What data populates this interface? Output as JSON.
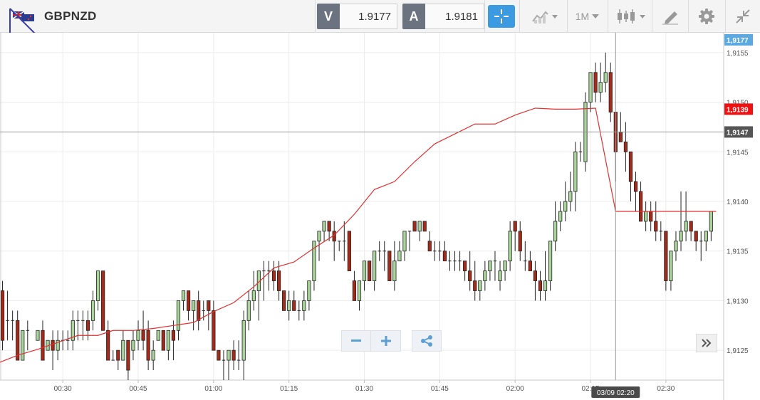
{
  "header": {
    "symbol": "GBPNZD",
    "bid_label": "V",
    "bid_value": "1.9177",
    "ask_label": "A",
    "ask_value": "1.9181",
    "interval_label": "1M"
  },
  "icons": {
    "flag": "gb-nz-flag-icon",
    "crosshair": "crosshair-icon",
    "chart_type": "line-chart-icon",
    "candles": "candlestick-icon",
    "draw": "pencil-icon",
    "settings": "gear-icon",
    "collapse": "collapse-icon",
    "zoom_out": "minus-icon",
    "zoom_in": "plus-icon",
    "share": "share-icon",
    "scroll_end": "double-chevron-right-icon"
  },
  "colors": {
    "up": "#a9d59a",
    "down": "#a52a1a",
    "ma": "#e03030",
    "bid_tag": "#5aa9e0",
    "cross_tag": "#555555",
    "ma_tag": "#ee1111",
    "accent": "#3c9be0"
  },
  "chart_data": {
    "type": "candlestick",
    "y_range": [
      1.9122,
      1.9157
    ],
    "y_ticks": [
      "1,9125",
      "1,9130",
      "1,9135",
      "1,9140",
      "1,9145",
      "1,9150",
      "1,9155"
    ],
    "x_ticks": [
      "00:30",
      "00:45",
      "01:00",
      "01:15",
      "01:30",
      "01:45",
      "02:00",
      "02:15",
      "02:30"
    ],
    "x_tick_minutes": [
      30,
      45,
      60,
      75,
      90,
      105,
      120,
      135,
      150
    ],
    "x_range_minutes": [
      17.5,
      161.5
    ],
    "price_tags": {
      "bid": "1,9177",
      "crosshair": "1,9147",
      "ma": "1,9139"
    },
    "crosshair_price": 1.9147,
    "crosshair_time": "03/09 02:20",
    "crosshair_minute": 140,
    "ma_values": [
      1.91238,
      1.91248,
      1.91262,
      1.91262,
      1.9127,
      1.9127,
      1.91272,
      1.9128,
      1.91289,
      1.91301,
      1.91314,
      1.91333,
      1.91339,
      1.91353,
      1.91366,
      1.91387,
      1.91412,
      1.9142,
      1.9144,
      1.91458,
      1.91468,
      1.91478,
      1.91478,
      1.91487,
      1.91494,
      1.91493,
      1.91493
    ],
    "ma_minutes": [
      17.5,
      21,
      25,
      29,
      33,
      37,
      40,
      44,
      48,
      52,
      56,
      60,
      64,
      68,
      72,
      76,
      80,
      84,
      88,
      92,
      96,
      100,
      104,
      108,
      112,
      116,
      120,
      124,
      128,
      132,
      136,
      140,
      144,
      148,
      152,
      156,
      160
    ],
    "ma_series": [
      1.91238,
      1.91245,
      1.91251,
      1.91258,
      1.91265,
      1.91265,
      1.9127,
      1.9127,
      1.91272,
      1.91275,
      1.91278,
      1.91289,
      1.91298,
      1.91314,
      1.91333,
      1.91339,
      1.91353,
      1.91366,
      1.91387,
      1.91412,
      1.9142,
      1.9144,
      1.91458,
      1.91468,
      1.91478,
      1.91478,
      1.91487,
      1.91494,
      1.91493,
      1.91493,
      1.91494,
      1.9139,
      1.9139,
      1.9139,
      1.9139,
      1.9139,
      1.9139
    ],
    "candles": [
      [
        18,
        1.9131,
        1.9132,
        1.9125,
        1.9126
      ],
      [
        19,
        1.9128,
        1.9131,
        1.9126,
        1.9128
      ],
      [
        20,
        1.9128,
        1.9129,
        1.9126,
        1.9128
      ],
      [
        21,
        1.9128,
        1.9129,
        1.9124,
        1.9124
      ],
      [
        22,
        1.9124,
        1.9127,
        1.9124,
        1.9127
      ],
      [
        23,
        1.9127,
        1.9128,
        1.9125,
        1.9127
      ],
      [
        25,
        1.9126,
        1.9127,
        1.9126,
        1.9127
      ],
      [
        26,
        1.9127,
        1.9128,
        1.9124,
        1.9124
      ],
      [
        27,
        1.9125,
        1.9126,
        1.9125,
        1.9126
      ],
      [
        28,
        1.9126,
        1.9127,
        1.9123,
        1.9125
      ],
      [
        29,
        1.9125,
        1.9127,
        1.9124,
        1.9126
      ],
      [
        30,
        1.9126,
        1.9127,
        1.9125,
        1.9126
      ],
      [
        31,
        1.9126,
        1.9127,
        1.9125,
        1.9126
      ],
      [
        32,
        1.9126,
        1.9129,
        1.9125,
        1.9128
      ],
      [
        33,
        1.9128,
        1.9129,
        1.9126,
        1.9128
      ],
      [
        34,
        1.9128,
        1.9129,
        1.9126,
        1.9128
      ],
      [
        35,
        1.9128,
        1.9129,
        1.9126,
        1.9127
      ],
      [
        36,
        1.9128,
        1.9131,
        1.9127,
        1.913
      ],
      [
        37,
        1.913,
        1.9133,
        1.9129,
        1.9133
      ],
      [
        38,
        1.9133,
        1.9133,
        1.9127,
        1.9127
      ],
      [
        39,
        1.9127,
        1.9128,
        1.9124,
        1.9124
      ],
      [
        40,
        1.9124,
        1.9125,
        1.9124,
        1.9124
      ],
      [
        41,
        1.9125,
        1.9125,
        1.9123,
        1.9124
      ],
      [
        42,
        1.9124,
        1.9127,
        1.9124,
        1.9126
      ],
      [
        43,
        1.9126,
        1.9126,
        1.9122,
        1.9123
      ],
      [
        44,
        1.9125,
        1.9127,
        1.9124,
        1.9126
      ],
      [
        45,
        1.9126,
        1.9128,
        1.9125,
        1.9127
      ],
      [
        46,
        1.9127,
        1.9129,
        1.9125,
        1.9126
      ],
      [
        47,
        1.9127,
        1.9128,
        1.9123,
        1.9124
      ],
      [
        48,
        1.9124,
        1.9126,
        1.9123,
        1.9125
      ],
      [
        49,
        1.9126,
        1.9127,
        1.9126,
        1.9127
      ],
      [
        50,
        1.9127,
        1.9127,
        1.9125,
        1.9125
      ],
      [
        51,
        1.9125,
        1.9127,
        1.9124,
        1.9127
      ],
      [
        52,
        1.9127,
        1.9128,
        1.9124,
        1.9126
      ],
      [
        53,
        1.9127,
        1.913,
        1.9126,
        1.913
      ],
      [
        54,
        1.913,
        1.9131,
        1.9129,
        1.9131
      ],
      [
        55,
        1.9131,
        1.9131,
        1.9128,
        1.9129
      ],
      [
        56,
        1.9129,
        1.913,
        1.9127,
        1.913
      ],
      [
        57,
        1.913,
        1.9131,
        1.9127,
        1.9128
      ],
      [
        58,
        1.9129,
        1.913,
        1.9128,
        1.9129
      ],
      [
        59,
        1.913,
        1.913,
        1.9127,
        1.9129
      ],
      [
        60,
        1.9129,
        1.913,
        1.9125,
        1.9125
      ],
      [
        61,
        1.9125,
        1.9125,
        1.9124,
        1.9124
      ],
      [
        62,
        1.9124,
        1.9125,
        1.9122,
        1.9124
      ],
      [
        63,
        1.9124,
        1.9125,
        1.9122,
        1.9125
      ],
      [
        64,
        1.9125,
        1.9126,
        1.9123,
        1.9124
      ],
      [
        65,
        1.9124,
        1.9126,
        1.9123,
        1.9124
      ],
      [
        66,
        1.9124,
        1.9129,
        1.9122,
        1.9128
      ],
      [
        67,
        1.9128,
        1.9131,
        1.9127,
        1.913
      ],
      [
        68,
        1.913,
        1.9133,
        1.9129,
        1.9131
      ],
      [
        69,
        1.9131,
        1.9133,
        1.9128,
        1.9133
      ],
      [
        70,
        1.9133,
        1.9134,
        1.913,
        1.9133
      ],
      [
        71,
        1.9133,
        1.9134,
        1.9131,
        1.9133
      ],
      [
        72,
        1.9133,
        1.9134,
        1.9131,
        1.9132
      ],
      [
        73,
        1.9133,
        1.9134,
        1.913,
        1.9131
      ],
      [
        74,
        1.9131,
        1.9131,
        1.9129,
        1.9129
      ],
      [
        75,
        1.9129,
        1.9131,
        1.9128,
        1.913
      ],
      [
        76,
        1.913,
        1.9131,
        1.9129,
        1.9129
      ],
      [
        77,
        1.9129,
        1.913,
        1.9128,
        1.9129
      ],
      [
        78,
        1.9129,
        1.9131,
        1.9128,
        1.913
      ],
      [
        79,
        1.913,
        1.9132,
        1.9129,
        1.9132
      ],
      [
        80,
        1.9132,
        1.9136,
        1.9131,
        1.9136
      ],
      [
        81,
        1.9136,
        1.9137,
        1.9134,
        1.9137
      ],
      [
        82,
        1.9137,
        1.9138,
        1.9136,
        1.9138
      ],
      [
        83,
        1.9138,
        1.9138,
        1.9136,
        1.9137
      ],
      [
        84,
        1.9137,
        1.9138,
        1.9134,
        1.9136
      ],
      [
        85,
        1.9136,
        1.9136,
        1.9135,
        1.9136
      ],
      [
        86,
        1.9136,
        1.9138,
        1.9134,
        1.9136
      ],
      [
        87,
        1.9137,
        1.9137,
        1.9133,
        1.9133
      ],
      [
        88,
        1.9132,
        1.9133,
        1.913,
        1.913
      ],
      [
        89,
        1.913,
        1.9132,
        1.9129,
        1.9132
      ],
      [
        90,
        1.9132,
        1.9134,
        1.9131,
        1.9134
      ],
      [
        91,
        1.9134,
        1.9134,
        1.9132,
        1.9132
      ],
      [
        92,
        1.9132,
        1.9135,
        1.9131,
        1.9135
      ],
      [
        93,
        1.9135,
        1.9136,
        1.9134,
        1.9135
      ],
      [
        94,
        1.9135,
        1.9136,
        1.9133,
        1.9135
      ],
      [
        95,
        1.9135,
        1.9135,
        1.9132,
        1.9132
      ],
      [
        96,
        1.9132,
        1.9136,
        1.9131,
        1.9134
      ],
      [
        97,
        1.9134,
        1.9136,
        1.9134,
        1.9135
      ],
      [
        98,
        1.9135,
        1.9137,
        1.9134,
        1.9137
      ],
      [
        99,
        1.9137,
        1.9137,
        1.9135,
        1.9137
      ],
      [
        100,
        1.9138,
        1.9138,
        1.9137,
        1.9137
      ],
      [
        101,
        1.9137,
        1.9138,
        1.9136,
        1.9138
      ],
      [
        102,
        1.9138,
        1.9138,
        1.9137,
        1.9137
      ],
      [
        103,
        1.9136,
        1.9137,
        1.9135,
        1.9135
      ],
      [
        104,
        1.9135,
        1.9136,
        1.9134,
        1.9135
      ],
      [
        105,
        1.9135,
        1.9136,
        1.9134,
        1.9135
      ],
      [
        106,
        1.9135,
        1.9136,
        1.9134,
        1.9134
      ],
      [
        107,
        1.9134,
        1.9135,
        1.9133,
        1.9134
      ],
      [
        108,
        1.9134,
        1.9135,
        1.9133,
        1.9134
      ],
      [
        109,
        1.9134,
        1.9135,
        1.9133,
        1.9134
      ],
      [
        110,
        1.9134,
        1.9134,
        1.9132,
        1.9133
      ],
      [
        111,
        1.9133,
        1.9135,
        1.9131,
        1.9132
      ],
      [
        112,
        1.9132,
        1.9134,
        1.913,
        1.9131
      ],
      [
        113,
        1.9131,
        1.9132,
        1.913,
        1.9132
      ],
      [
        114,
        1.9132,
        1.9134,
        1.9131,
        1.9133
      ],
      [
        115,
        1.9133,
        1.9134,
        1.9132,
        1.9134
      ],
      [
        116,
        1.9134,
        1.9135,
        1.9132,
        1.9134
      ],
      [
        117,
        1.9132,
        1.9134,
        1.9131,
        1.9133
      ],
      [
        118,
        1.9133,
        1.9134,
        1.9132,
        1.9134
      ],
      [
        119,
        1.9134,
        1.9138,
        1.9133,
        1.9137
      ],
      [
        120,
        1.9138,
        1.9138,
        1.9135,
        1.9137
      ],
      [
        121,
        1.9137,
        1.9138,
        1.9134,
        1.9135
      ],
      [
        122,
        1.9134,
        1.9136,
        1.9133,
        1.9134
      ],
      [
        123,
        1.9134,
        1.9135,
        1.9133,
        1.9133
      ],
      [
        124,
        1.9133,
        1.9134,
        1.913,
        1.9132
      ],
      [
        125,
        1.9132,
        1.9133,
        1.913,
        1.9131
      ],
      [
        126,
        1.9131,
        1.9135,
        1.913,
        1.9132
      ],
      [
        127,
        1.9132,
        1.9136,
        1.9131,
        1.9136
      ],
      [
        128,
        1.9136,
        1.914,
        1.9135,
        1.9138
      ],
      [
        129,
        1.9138,
        1.914,
        1.9137,
        1.9139
      ],
      [
        130,
        1.9139,
        1.9142,
        1.9138,
        1.914
      ],
      [
        131,
        1.914,
        1.9143,
        1.9139,
        1.9141
      ],
      [
        132,
        1.9141,
        1.9146,
        1.9139,
        1.9145
      ],
      [
        133,
        1.9145,
        1.9146,
        1.9144,
        1.9145
      ],
      [
        134,
        1.9144,
        1.9151,
        1.9143,
        1.915
      ],
      [
        135,
        1.915,
        1.9153,
        1.9149,
        1.9153
      ],
      [
        136,
        1.9153,
        1.9154,
        1.915,
        1.9151
      ],
      [
        137,
        1.9151,
        1.9154,
        1.915,
        1.9152
      ],
      [
        138,
        1.9152,
        1.9155,
        1.9151,
        1.9153
      ],
      [
        139,
        1.9153,
        1.9154,
        1.9148,
        1.9149
      ],
      [
        140,
        1.9149,
        1.9149,
        1.9142,
        1.9145
      ],
      [
        141,
        1.9147,
        1.9149,
        1.9146,
        1.9146
      ],
      [
        142,
        1.9146,
        1.9148,
        1.9143,
        1.9145
      ],
      [
        143,
        1.9145,
        1.9145,
        1.914,
        1.9142
      ],
      [
        144,
        1.9142,
        1.9143,
        1.9139,
        1.9141
      ],
      [
        145,
        1.9141,
        1.9142,
        1.9138,
        1.9138
      ],
      [
        146,
        1.9138,
        1.914,
        1.9137,
        1.9139
      ],
      [
        147,
        1.9139,
        1.914,
        1.9137,
        1.9138
      ],
      [
        148,
        1.9138,
        1.914,
        1.9136,
        1.9137
      ],
      [
        149,
        1.9137,
        1.9138,
        1.9136,
        1.9137
      ],
      [
        150,
        1.9137,
        1.9137,
        1.9131,
        1.9132
      ],
      [
        151,
        1.9132,
        1.9135,
        1.9131,
        1.9135
      ],
      [
        152,
        1.9135,
        1.9137,
        1.9134,
        1.9136
      ],
      [
        153,
        1.9136,
        1.9141,
        1.9135,
        1.9137
      ],
      [
        154,
        1.9137,
        1.9141,
        1.9136,
        1.9138
      ],
      [
        155,
        1.9138,
        1.9138,
        1.9136,
        1.9137
      ],
      [
        156,
        1.9137,
        1.9137,
        1.9135,
        1.9136
      ],
      [
        157,
        1.9136,
        1.9137,
        1.9134,
        1.9136
      ],
      [
        158,
        1.9136,
        1.9137,
        1.9135,
        1.9137
      ],
      [
        159,
        1.9137,
        1.9139,
        1.9136,
        1.9139
      ]
    ]
  }
}
